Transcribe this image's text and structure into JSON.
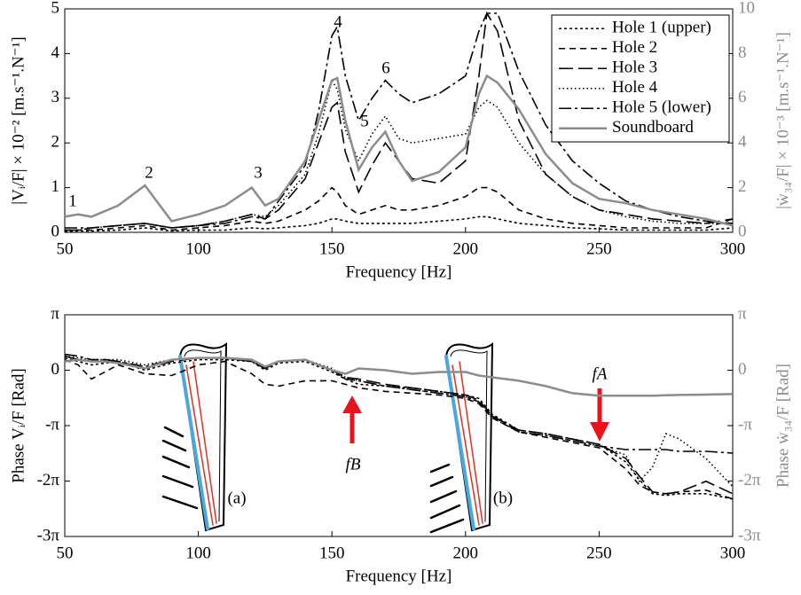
{
  "chart_data": [
    {
      "type": "line",
      "xlabel": "Frequency [Hz]",
      "ylabel": "|Vᵢ/F| × 10⁻² [m.s⁻¹.N⁻¹]",
      "y2label": "|ẇ₃₄/F| × 10⁻³  [m.s⁻¹.N⁻¹]",
      "xlim": [
        50,
        300
      ],
      "xticks": [
        50,
        100,
        150,
        200,
        250,
        300
      ],
      "ylim": [
        0,
        5
      ],
      "yticks": [
        0,
        1,
        2,
        3,
        4,
        5
      ],
      "y2lim": [
        0,
        10
      ],
      "y2ticks": [
        0,
        2,
        4,
        6,
        8,
        10
      ],
      "legend": "upper right",
      "annotations": [
        "1",
        "2",
        "3",
        "4",
        "5",
        "6"
      ],
      "x": [
        50,
        55,
        60,
        70,
        80,
        90,
        100,
        110,
        120,
        125,
        130,
        140,
        145,
        150,
        152,
        155,
        160,
        165,
        170,
        175,
        180,
        190,
        200,
        205,
        208,
        212,
        220,
        230,
        240,
        250,
        260,
        270,
        280,
        290,
        300
      ],
      "series": [
        {
          "name": "Hole 1 (upper)",
          "color": "#000000",
          "style": "finedash",
          "values": [
            0.02,
            0.03,
            0.03,
            0.05,
            0.1,
            0.03,
            0.05,
            0.05,
            0.1,
            0.08,
            0.1,
            0.15,
            0.2,
            0.3,
            0.3,
            0.25,
            0.2,
            0.2,
            0.2,
            0.2,
            0.2,
            0.25,
            0.3,
            0.35,
            0.35,
            0.3,
            0.2,
            0.15,
            0.1,
            0.08,
            0.05,
            0.05,
            0.05,
            0.05,
            0.1
          ]
        },
        {
          "name": "Hole 2",
          "color": "#000000",
          "style": "dashed",
          "values": [
            0.05,
            0.05,
            0.05,
            0.1,
            0.15,
            0.05,
            0.1,
            0.15,
            0.25,
            0.2,
            0.25,
            0.5,
            0.7,
            1.0,
            0.9,
            0.6,
            0.4,
            0.5,
            0.6,
            0.5,
            0.5,
            0.6,
            0.8,
            1.0,
            1.0,
            0.9,
            0.5,
            0.3,
            0.2,
            0.15,
            0.1,
            0.1,
            0.1,
            0.1,
            0.3
          ]
        },
        {
          "name": "Hole 3",
          "color": "#000000",
          "style": "longdash",
          "values": [
            0.05,
            0.05,
            0.1,
            0.15,
            0.2,
            0.1,
            0.15,
            0.25,
            0.4,
            0.3,
            0.5,
            1.2,
            2.0,
            2.8,
            2.9,
            1.8,
            0.9,
            1.5,
            2.0,
            1.6,
            1.2,
            1.1,
            1.6,
            3.5,
            4.9,
            4.5,
            2.5,
            1.3,
            0.8,
            0.5,
            0.4,
            0.3,
            0.25,
            0.2,
            0.3
          ]
        },
        {
          "name": "Hole 4",
          "color": "#000000",
          "style": "dotted",
          "values": [
            0.05,
            0.05,
            0.1,
            0.15,
            0.2,
            0.1,
            0.15,
            0.25,
            0.4,
            0.35,
            0.6,
            1.3,
            2.2,
            3.4,
            3.2,
            2.3,
            1.6,
            2.2,
            2.6,
            2.1,
            2.0,
            2.1,
            2.2,
            2.8,
            2.95,
            2.8,
            2.0,
            1.3,
            0.8,
            0.5,
            0.35,
            0.25,
            0.2,
            0.2,
            0.2
          ]
        },
        {
          "name": "Hole 5 (lower)",
          "color": "#000000",
          "style": "dashdot",
          "values": [
            0.1,
            0.1,
            0.1,
            0.15,
            0.2,
            0.1,
            0.15,
            0.2,
            0.35,
            0.3,
            0.7,
            1.5,
            2.7,
            4.4,
            4.6,
            3.5,
            2.5,
            3.0,
            3.4,
            3.1,
            2.9,
            3.1,
            3.5,
            4.5,
            4.9,
            4.9,
            3.6,
            2.4,
            1.6,
            1.1,
            0.7,
            0.5,
            0.35,
            0.25,
            0.2
          ]
        },
        {
          "name": "Soundboard",
          "color": "#8c8c8c",
          "style": "solid",
          "axis": "y2",
          "values": [
            0.7,
            0.8,
            0.7,
            1.2,
            2.1,
            0.5,
            0.8,
            1.2,
            2.0,
            1.2,
            1.5,
            3.2,
            5.0,
            6.8,
            6.9,
            5.0,
            2.8,
            3.8,
            4.5,
            3.2,
            2.3,
            2.7,
            3.8,
            6.2,
            7.0,
            6.7,
            5.5,
            3.5,
            2.2,
            1.5,
            1.3,
            1.0,
            0.8,
            0.6,
            0.3
          ]
        }
      ]
    },
    {
      "type": "line",
      "xlabel": "Frequency [Hz]",
      "ylabel": "Phase Vᵢ/F [Rad]",
      "y2label": "Phase ẇ₃₄/F [Rad]",
      "xlim": [
        50,
        300
      ],
      "xticks": [
        50,
        100,
        150,
        200,
        250,
        300
      ],
      "ylim": [
        -9.42478,
        3.14159
      ],
      "yticks": [
        {
          "value": 3.14159,
          "label": "π"
        },
        0,
        {
          "value": -3.14159,
          "label": "-π"
        },
        {
          "value": -6.28319,
          "label": "-2π"
        },
        {
          "value": -9.42478,
          "label": "-3π"
        }
      ],
      "y2lim": [
        -9.42478,
        3.14159
      ],
      "y2ticks": [
        {
          "value": 3.14159,
          "label": "π"
        },
        0,
        {
          "value": -3.14159,
          "label": "-π"
        },
        {
          "value": -6.28319,
          "label": "-2π"
        },
        {
          "value": -9.42478,
          "label": "-3π"
        }
      ],
      "annotations": [
        "fB",
        "fA",
        "(a)",
        "(b)"
      ],
      "x": [
        50,
        55,
        60,
        65,
        70,
        80,
        90,
        100,
        110,
        120,
        125,
        130,
        140,
        150,
        155,
        160,
        170,
        180,
        190,
        200,
        205,
        210,
        220,
        230,
        240,
        250,
        260,
        265,
        270,
        275,
        280,
        290,
        300
      ],
      "series": [
        {
          "color": "#000000",
          "style": "finedash",
          "values": [
            0.7,
            0.5,
            0.3,
            0.4,
            0.5,
            0.0,
            0.4,
            0.6,
            0.6,
            0.5,
            0.0,
            0.4,
            0.5,
            -0.1,
            -0.5,
            -0.8,
            -0.9,
            -1.0,
            -1.2,
            -1.4,
            -1.6,
            -2.5,
            -3.4,
            -3.6,
            -3.9,
            -4.2,
            -5.2,
            -6.2,
            -7.0,
            -7.1,
            -7.0,
            -7.0,
            -7.3
          ]
        },
        {
          "color": "#000000",
          "style": "dashed",
          "values": [
            0.6,
            0.3,
            -0.5,
            -0.1,
            0.3,
            -0.2,
            -0.3,
            0.3,
            0.5,
            -0.2,
            -0.8,
            -0.9,
            -0.6,
            -0.6,
            -0.8,
            -1.0,
            -1.2,
            -1.3,
            -1.4,
            -1.6,
            -1.9,
            -2.7,
            -3.5,
            -3.8,
            -4.1,
            -4.4,
            -5.6,
            -6.5,
            -6.9,
            -7.0,
            -6.9,
            -6.8,
            -7.3
          ]
        },
        {
          "color": "#000000",
          "style": "longdash",
          "values": [
            0.8,
            0.6,
            0.5,
            0.6,
            0.5,
            0.1,
            0.5,
            0.7,
            0.7,
            0.5,
            0.1,
            0.5,
            0.6,
            0.0,
            -0.4,
            -0.5,
            -0.8,
            -1.0,
            -1.2,
            -1.4,
            -1.7,
            -2.6,
            -3.4,
            -3.6,
            -3.9,
            -4.2,
            -5.0,
            -6.0,
            -6.9,
            -7.0,
            -6.9,
            -6.3,
            -7.0
          ]
        },
        {
          "color": "#000000",
          "style": "dotted",
          "values": [
            0.8,
            0.7,
            0.6,
            0.6,
            0.6,
            0.3,
            0.6,
            0.7,
            0.7,
            0.6,
            0.2,
            0.5,
            0.6,
            0.1,
            -0.4,
            -0.6,
            -0.9,
            -1.1,
            -1.3,
            -1.5,
            -1.8,
            -2.7,
            -3.5,
            -3.7,
            -4.0,
            -4.3,
            -4.8,
            -6.3,
            -5.5,
            -3.6,
            -3.9,
            -5.0,
            -6.6
          ]
        },
        {
          "color": "#000000",
          "style": "dashdot",
          "values": [
            0.9,
            0.8,
            0.6,
            0.6,
            0.5,
            0.2,
            0.6,
            0.7,
            0.7,
            0.5,
            0.1,
            0.5,
            0.6,
            0.0,
            -0.5,
            -0.6,
            -0.9,
            -1.1,
            -1.3,
            -1.5,
            -1.8,
            -2.6,
            -3.5,
            -3.7,
            -4.0,
            -4.3,
            -4.5,
            -4.5,
            -4.5,
            -4.5,
            -4.6,
            -4.6,
            -4.7
          ]
        },
        {
          "color": "#8c8c8c",
          "style": "solid",
          "axis": "y2",
          "values": [
            0.5,
            0.6,
            0.5,
            0.5,
            0.4,
            0.1,
            0.6,
            0.7,
            0.7,
            0.6,
            0.2,
            0.5,
            0.6,
            0.0,
            -0.2,
            0.1,
            0.0,
            -0.2,
            -0.1,
            -0.1,
            -0.3,
            -0.4,
            -0.6,
            -0.9,
            -1.3,
            -1.45,
            -1.45,
            -1.45,
            -1.45,
            -1.42,
            -1.4,
            -1.38,
            -1.35
          ]
        }
      ]
    }
  ]
}
